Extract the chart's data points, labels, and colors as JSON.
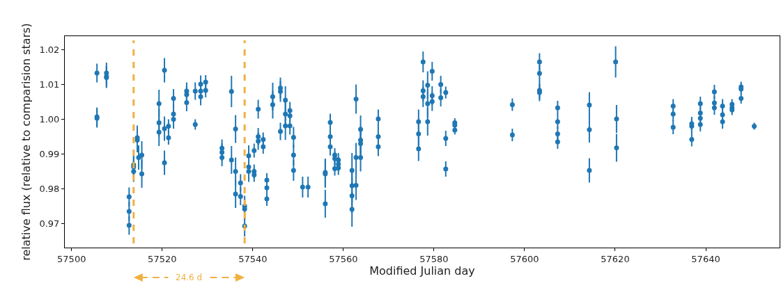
{
  "chart_data": {
    "type": "scatter",
    "xlabel": "Modified Julian day",
    "ylabel": "relative flux (relative to comparision stars)",
    "annotations": [
      "24.6 d"
    ],
    "x": [
      57505.6,
      57505.6,
      57505.6,
      57507.7,
      57507.7,
      57507.7,
      57512.7,
      57512.7,
      57512.7,
      57513.7,
      57513.7,
      57513.7,
      57514.5,
      57514.5,
      57514.8,
      57515.5,
      57515.5,
      57519.3,
      57519.3,
      57519.3,
      57520.5,
      57520.5,
      57520.5,
      57521.4,
      57521.4,
      57522.5,
      57522.5,
      57522.5,
      57525.4,
      57525.4,
      57525.4,
      57527.3,
      57527.3,
      57528.5,
      57528.5,
      57528.5,
      57529.6,
      57529.6,
      57533.2,
      57533.2,
      57533.2,
      57535.3,
      57535.3,
      57536.2,
      57536.2,
      57536.2,
      57537.3,
      57537.3,
      57538.2,
      57538.2,
      57538.2,
      57539.1,
      57539.1,
      57539.1,
      57540.3,
      57540.3,
      57540.3,
      57541.2,
      57541.2,
      57541.2,
      57542.3,
      57542.3,
      57543.1,
      57543.1,
      57543.1,
      57544.4,
      57544.4,
      57546.1,
      57546.1,
      57546.1,
      57547.2,
      57547.2,
      57547.2,
      57548.2,
      57548.2,
      57548.2,
      57549.0,
      57549.0,
      57549.0,
      57551.0,
      57552.2,
      57556.0,
      57556.0,
      57556.0,
      57557.1,
      57557.1,
      57557.1,
      57558.1,
      57558.1,
      57558.1,
      57558.9,
      57558.9,
      57558.9,
      57561.9,
      57561.9,
      57561.9,
      57561.9,
      57562.8,
      57562.8,
      57562.8,
      57563.8,
      57563.8,
      57563.8,
      57563.8,
      57567.7,
      57567.7,
      57567.7,
      57576.6,
      57576.6,
      57576.6,
      57577.6,
      57577.6,
      57577.6,
      57578.6,
      57578.6,
      57578.6,
      57579.6,
      57579.6,
      57579.6,
      57581.5,
      57581.5,
      57582.6,
      57582.6,
      57582.6,
      57584.6,
      57584.6,
      57584.6,
      57597.3,
      57597.3,
      57603.3,
      57603.3,
      57603.3,
      57603.3,
      57607.3,
      57607.3,
      57607.3,
      57607.3,
      57614.3,
      57614.3,
      57614.3,
      57620.1,
      57620.3,
      57620.3,
      57632.8,
      57632.8,
      57632.8,
      57636.9,
      57636.9,
      57636.9,
      57638.8,
      57638.8,
      57638.8,
      57638.8,
      57641.9,
      57641.9,
      57641.9,
      57643.7,
      57643.7,
      57643.7,
      57645.8,
      57645.8,
      57645.8,
      57647.8,
      57647.8,
      57647.8,
      57650.7
    ],
    "values": [
      1.0133,
      1.0007,
      1.0003,
      1.0133,
      1.0123,
      1.012,
      0.9777,
      0.9735,
      0.9695,
      0.9869,
      0.9863,
      0.985,
      0.9947,
      0.994,
      0.989,
      0.9897,
      0.9843,
      1.0045,
      0.999,
      0.9963,
      1.0141,
      0.9973,
      0.9875,
      0.998,
      0.9947,
      1.006,
      1.0015,
      1.0,
      1.0081,
      1.0071,
      1.0048,
      1.0081,
      0.9985,
      1.0101,
      1.0081,
      1.0065,
      1.0107,
      1.0083,
      0.9917,
      0.9905,
      0.989,
      1.008,
      0.9883,
      0.9972,
      0.985,
      0.9785,
      0.9817,
      0.9778,
      0.975,
      0.9742,
      0.9693,
      0.9895,
      0.9863,
      0.985,
      0.991,
      0.985,
      0.984,
      1.0029,
      0.995,
      0.9937,
      0.9942,
      0.9921,
      0.9825,
      0.9803,
      0.9771,
      1.0065,
      1.0042,
      1.009,
      1.008,
      0.9965,
      1.0055,
      1.0015,
      0.9981,
      1.0025,
      1.001,
      0.9981,
      0.9948,
      0.9897,
      0.9853,
      0.9805,
      0.9805,
      0.9847,
      0.9843,
      0.9757,
      0.9991,
      0.995,
      0.9921,
      0.9897,
      0.9887,
      0.9858,
      0.9883,
      0.9871,
      0.986,
      0.9853,
      0.9809,
      0.978,
      0.9741,
      1.0058,
      0.989,
      0.981,
      0.9971,
      0.994,
      0.993,
      0.989,
      1.0001,
      0.995,
      0.9921,
      0.9993,
      0.9958,
      0.9915,
      1.0165,
      1.0082,
      1.0065,
      1.0098,
      1.0045,
      0.9993,
      1.0138,
      1.0068,
      1.0051,
      1.01,
      1.0062,
      1.0077,
      0.9945,
      0.9857,
      0.999,
      0.9983,
      0.9969,
      1.0042,
      0.9955,
      1.0165,
      1.0132,
      1.0083,
      1.0077,
      1.0033,
      0.9993,
      0.9958,
      0.9935,
      1.0041,
      0.997,
      0.9853,
      1.0165,
      1.0001,
      0.9918,
      1.0038,
      1.0015,
      0.9977,
      0.9987,
      0.998,
      0.9942,
      1.0045,
      1.0018,
      1.0003,
      0.9985,
      1.0079,
      1.0047,
      1.0033,
      1.0038,
      1.0013,
      0.9993,
      1.0043,
      1.0033,
      1.0027,
      1.0093,
      1.0087,
      1.006,
      0.998
    ],
    "errors": [
      0.0027,
      0.0027,
      0.0027,
      0.003,
      0.003,
      0.003,
      0.0027,
      0.0027,
      0.0027,
      0.003,
      0.003,
      0.003,
      0.0035,
      0.0035,
      0.0035,
      0.004,
      0.004,
      0.004,
      0.004,
      0.004,
      0.0035,
      0.0035,
      0.0035,
      0.002,
      0.002,
      0.0027,
      0.0027,
      0.0027,
      0.0025,
      0.0025,
      0.0025,
      0.0025,
      0.0015,
      0.0025,
      0.0025,
      0.0025,
      0.002,
      0.002,
      0.0025,
      0.0025,
      0.0025,
      0.0045,
      0.004,
      0.004,
      0.004,
      0.004,
      0.0025,
      0.0025,
      0.003,
      0.003,
      0.003,
      0.003,
      0.003,
      0.003,
      0.002,
      0.002,
      0.002,
      0.0027,
      0.0025,
      0.0025,
      0.002,
      0.002,
      0.002,
      0.002,
      0.002,
      0.004,
      0.004,
      0.003,
      0.003,
      0.0025,
      0.004,
      0.004,
      0.004,
      0.0025,
      0.0025,
      0.0025,
      0.003,
      0.003,
      0.003,
      0.003,
      0.003,
      0.004,
      0.004,
      0.004,
      0.0025,
      0.0025,
      0.0025,
      0.002,
      0.002,
      0.002,
      0.002,
      0.002,
      0.002,
      0.005,
      0.005,
      0.005,
      0.005,
      0.0042,
      0.0042,
      0.0042,
      0.004,
      0.004,
      0.004,
      0.004,
      0.0027,
      0.0027,
      0.0027,
      0.0035,
      0.0035,
      0.0035,
      0.003,
      0.003,
      0.003,
      0.004,
      0.004,
      0.004,
      0.0027,
      0.0027,
      0.0027,
      0.0025,
      0.0025,
      0.0017,
      0.0022,
      0.0022,
      0.0013,
      0.0013,
      0.0013,
      0.0018,
      0.0018,
      0.0025,
      0.0025,
      0.0025,
      0.0025,
      0.002,
      0.002,
      0.002,
      0.002,
      0.0037,
      0.0037,
      0.0035,
      0.0045,
      0.004,
      0.004,
      0.002,
      0.002,
      0.002,
      0.002,
      0.002,
      0.002,
      0.002,
      0.002,
      0.002,
      0.002,
      0.002,
      0.002,
      0.002,
      0.002,
      0.002,
      0.002,
      0.0015,
      0.0015,
      0.0015,
      0.0015,
      0.0015,
      0.0015,
      0.001
    ],
    "color": "#1f77b4",
    "marker": "circle",
    "grid": false,
    "ref_lines": [
      {
        "axis": "x",
        "value": 57513.7,
        "color": "#f0b040",
        "line_style": "dashed"
      },
      {
        "axis": "x",
        "value": 57538.2,
        "color": "#f0b040",
        "line_style": "dashed"
      }
    ],
    "xlim": [
      57498.5,
      57656.3
    ],
    "xticks": [
      57500,
      57520,
      57540,
      57560,
      57580,
      57600,
      57620,
      57640
    ],
    "ylim": [
      0.9631,
      1.0239
    ],
    "yticks": [
      0.97,
      0.98,
      0.99,
      {
        "value": 1.0,
        "label": "1.00"
      },
      1.01,
      1.02
    ]
  }
}
